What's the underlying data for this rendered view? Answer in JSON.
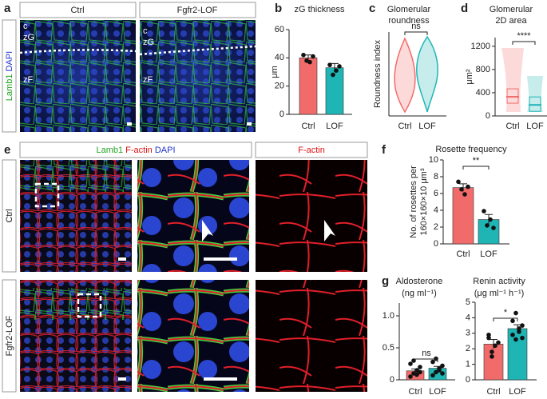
{
  "panel_labels": [
    "a",
    "b",
    "c",
    "d",
    "e",
    "f",
    "g"
  ],
  "panel_a": {
    "columns": [
      "Ctrl",
      "Fgfr2-LOF"
    ],
    "stain": [
      "Lamb1",
      "DAPI"
    ],
    "zones": [
      "c",
      "zG",
      "zF"
    ]
  },
  "panel_e": {
    "stain": [
      "Lamb1",
      "F-actin",
      "DAPI"
    ],
    "single": "F-actin",
    "rows": [
      "Ctrl",
      "Fgfr2-LOF"
    ]
  },
  "chart_data": [
    {
      "type": "bar",
      "title": "zG thickness",
      "ylabel": [
        "μm"
      ],
      "categories": [
        "Ctrl",
        "LOF"
      ],
      "values": [
        40,
        33
      ],
      "errors": [
        2,
        3
      ],
      "points": [
        [
          42,
          38,
          37,
          41
        ],
        [
          35,
          28,
          31,
          34
        ]
      ],
      "colors": [
        "#f26b6b",
        "#1fb5b5"
      ],
      "ylim": [
        0,
        60
      ],
      "yticks": [
        0,
        20,
        40,
        60
      ]
    },
    {
      "type": "violin",
      "title": [
        "Glomerular",
        "roundness"
      ],
      "ylabel": [
        "Roundness index"
      ],
      "categories": [
        "Ctrl",
        "LOF"
      ],
      "colors": [
        "#f26b6b",
        "#1fb5b5"
      ],
      "annotation": "ns"
    },
    {
      "type": "violin",
      "title": [
        "Glomerular",
        "2D area"
      ],
      "ylabel": [
        "μm²"
      ],
      "categories": [
        "Ctrl",
        "LOF"
      ],
      "medians": [
        330,
        190
      ],
      "colors": [
        "#f26b6b",
        "#1fb5b5"
      ],
      "ylim": [
        0,
        1350
      ],
      "yticks": [
        0,
        400,
        800,
        1200
      ],
      "annotation": "****"
    },
    {
      "type": "bar",
      "title": "Rosette frequency",
      "ylabel": [
        "No. of rosettes per",
        "160×160×10 μm³"
      ],
      "categories": [
        "Ctrl",
        "LOF"
      ],
      "values": [
        6.7,
        2.9
      ],
      "errors": [
        0.45,
        0.6
      ],
      "points": [
        [
          7.4,
          6.5,
          5.9,
          6.8
        ],
        [
          3.9,
          2.2,
          2.9,
          1.9
        ]
      ],
      "colors": [
        "#f26b6b",
        "#1fb5b5"
      ],
      "ylim": [
        0,
        10
      ],
      "yticks": [
        0,
        2,
        4,
        6,
        8,
        10
      ],
      "annotation": "**"
    },
    {
      "type": "bar",
      "title": [
        "Aldosterone",
        "(ng ml⁻¹)"
      ],
      "categories": [
        "Ctrl",
        "LOF"
      ],
      "values": [
        0.14,
        0.18
      ],
      "errors": [
        0.03,
        0.03
      ],
      "points": [
        [
          0.05,
          0.1,
          0.15,
          0.2,
          0.25,
          0.3,
          0.08,
          0.12
        ],
        [
          0.07,
          0.12,
          0.18,
          0.22,
          0.28,
          0.33,
          0.15,
          0.1
        ]
      ],
      "colors": [
        "#f26b6b",
        "#1fb5b5"
      ],
      "ylim": [
        0,
        1.2
      ],
      "yticks": [
        0,
        0.5,
        {
          "value": 1,
          "label": "1.0"
        }
      ],
      "annotation": "ns"
    },
    {
      "type": "bar",
      "title": [
        "Renin activity",
        "(μg ml⁻¹ h⁻¹)"
      ],
      "categories": [
        "Ctrl",
        "LOF"
      ],
      "values": [
        2.3,
        3.3
      ],
      "errors": [
        0.3,
        0.25
      ],
      "points": [
        [
          2.7,
          1.5,
          2.2,
          2.4,
          2.9,
          1.8
        ],
        [
          3.8,
          2.6,
          3.1,
          3.5,
          2.9,
          4.3,
          3.3,
          2.7
        ]
      ],
      "colors": [
        "#f26b6b",
        "#1fb5b5"
      ],
      "ylim": [
        0,
        5
      ],
      "yticks": [
        0,
        1,
        2,
        3,
        4,
        5
      ],
      "annotation": "*"
    }
  ]
}
